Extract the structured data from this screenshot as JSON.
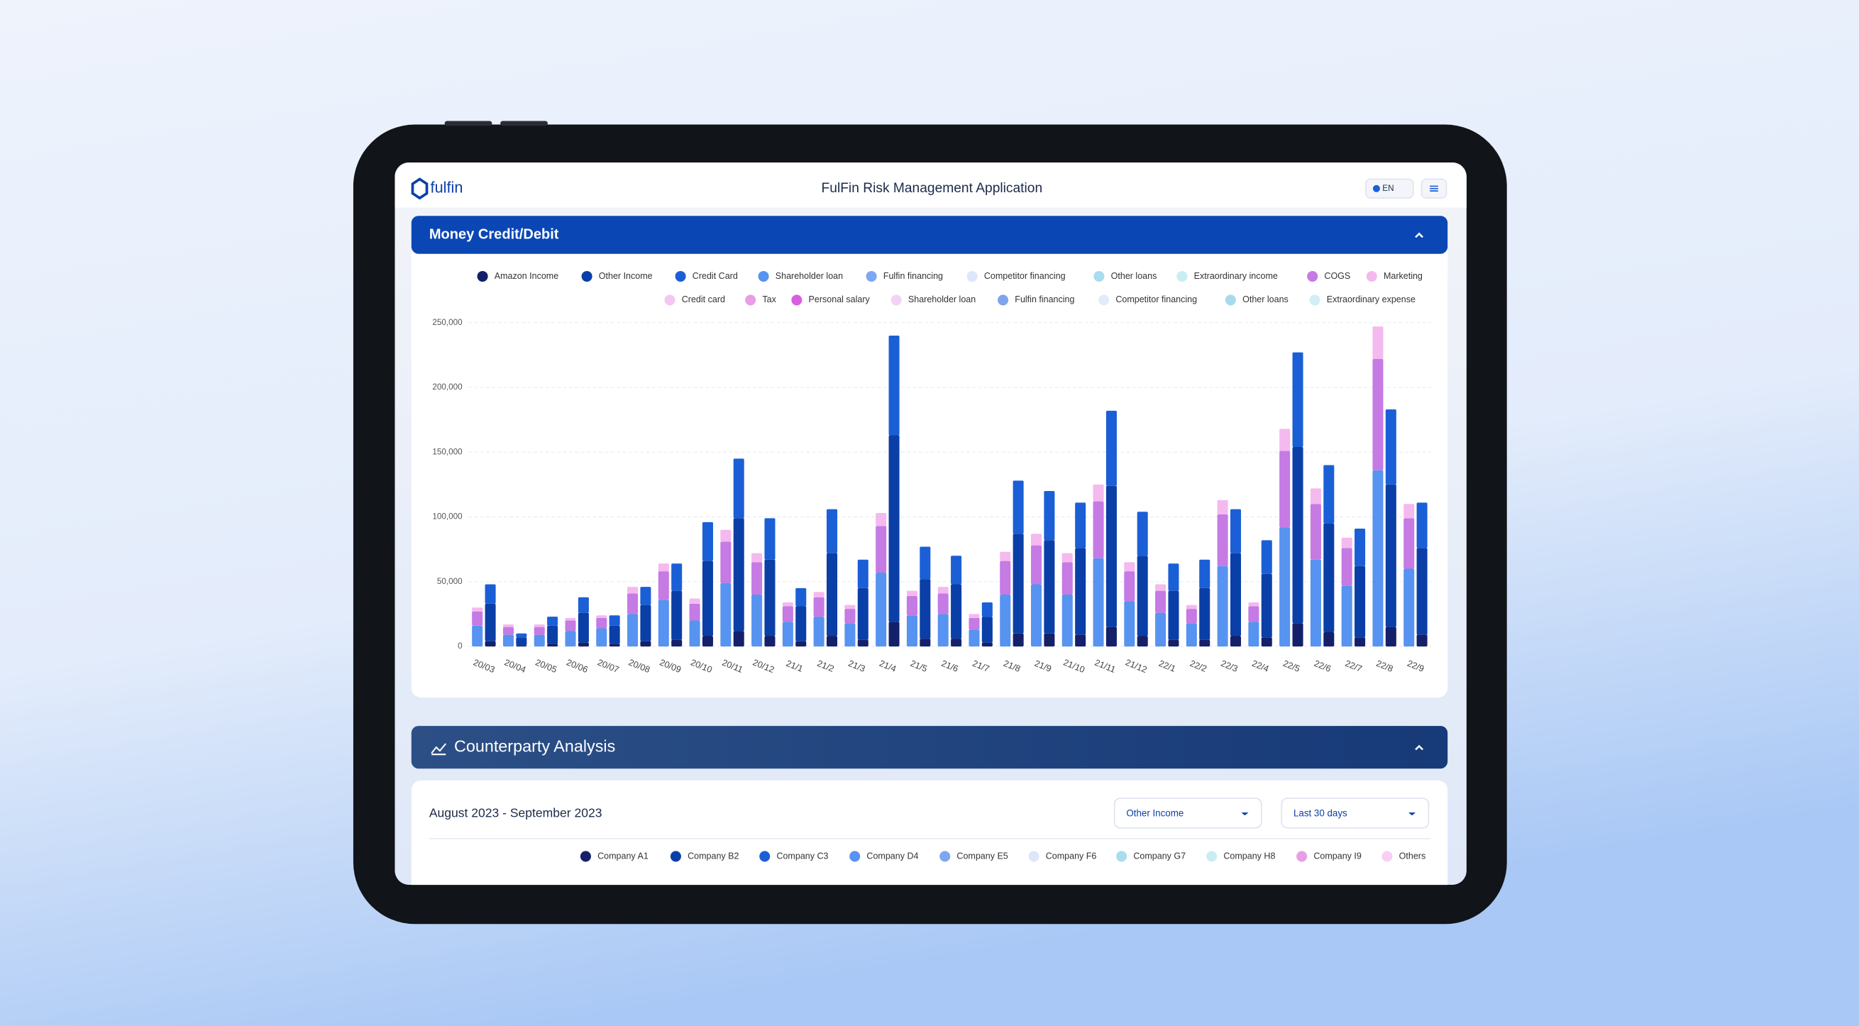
{
  "header": {
    "logo": "fulfin",
    "title": "FulFin Risk Management Application",
    "language": "EN"
  },
  "sections": [
    {
      "title": "Money Credit/Debit"
    },
    {
      "title": "Counterparty Analysis"
    }
  ],
  "chart_data": {
    "type": "bar",
    "stacked": true,
    "grid": true,
    "categories": [
      "20/03",
      "20/04",
      "20/05",
      "20/06",
      "20/07",
      "20/08",
      "20/09",
      "20/10",
      "20/11",
      "20/12",
      "21/1",
      "21/2",
      "21/3",
      "21/4",
      "21/5",
      "21/6",
      "21/7",
      "21/8",
      "21/9",
      "21/10",
      "21/11",
      "21/12",
      "22/1",
      "22/2",
      "22/3",
      "22/4",
      "22/5",
      "22/6",
      "22/7",
      "22/8",
      "22/9"
    ],
    "ylim": [
      0,
      250000
    ],
    "yticks": [
      0,
      {
        "value": 50000,
        "label": "50,000"
      },
      {
        "value": 100000,
        "label": "100,000"
      },
      {
        "value": 150000,
        "label": "150,000"
      },
      {
        "value": 200000,
        "label": "200,000"
      },
      {
        "value": 250000,
        "label": "250,000"
      }
    ],
    "series": [
      {
        "name": "Amazon Income",
        "color": "#14206a",
        "stack": "b",
        "values": [
          4000,
          1000,
          2000,
          3000,
          2000,
          4000,
          5000,
          8000,
          12000,
          8000,
          4000,
          8000,
          5000,
          19000,
          6000,
          6000,
          3000,
          10000,
          10000,
          9000,
          15000,
          8000,
          5000,
          5000,
          8000,
          7000,
          18000,
          11000,
          7000,
          15000,
          9000
        ]
      },
      {
        "name": "Other Income",
        "color": "#0b3fa8",
        "stack": "b",
        "values": [
          29000,
          6000,
          14000,
          23000,
          14000,
          28000,
          38000,
          58000,
          87000,
          59000,
          27000,
          64000,
          40000,
          144000,
          46000,
          42000,
          20000,
          77000,
          72000,
          67000,
          109000,
          62000,
          38000,
          40000,
          64000,
          49000,
          136000,
          84000,
          55000,
          110000,
          67000
        ]
      },
      {
        "name": "Credit Card",
        "color": "#1b5fd6",
        "stack": "b",
        "values": [
          15000,
          3000,
          7000,
          12000,
          8000,
          14000,
          21000,
          30000,
          46000,
          32000,
          14000,
          34000,
          22000,
          77000,
          25000,
          22000,
          11000,
          41000,
          38000,
          35000,
          58000,
          34000,
          21000,
          22000,
          34000,
          26000,
          73000,
          45000,
          29000,
          58000,
          35000
        ]
      },
      {
        "name": "Shareholder loan",
        "color": "#5793f0",
        "stack": "a",
        "values": [
          16000,
          9000,
          9000,
          12000,
          14000,
          25000,
          36000,
          20000,
          49000,
          40000,
          19000,
          23000,
          18000,
          57000,
          24000,
          25000,
          13000,
          40000,
          48000,
          40000,
          68000,
          35000,
          26000,
          18000,
          62000,
          19000,
          92000,
          67000,
          47000,
          136000,
          60000
        ]
      },
      {
        "name": "Fulfin financing",
        "color": "#7ea7f2"
      },
      {
        "name": "Competitor financing",
        "color": "#dde7fb"
      },
      {
        "name": "Other loans",
        "color": "#a8dcef"
      },
      {
        "name": "Extraordinary income",
        "color": "#c9ecf5"
      },
      {
        "name": "COGS",
        "color": "#c57ae4",
        "stack": "a",
        "values": [
          11000,
          6000,
          6000,
          8000,
          8000,
          16000,
          22000,
          13000,
          32000,
          25000,
          12000,
          15000,
          11000,
          36000,
          15000,
          16000,
          9000,
          26000,
          30000,
          25000,
          44000,
          23000,
          17000,
          11000,
          40000,
          12000,
          59000,
          43000,
          29000,
          86000,
          39000
        ]
      },
      {
        "name": "Marketing",
        "color": "#f4b9ee",
        "stack": "a",
        "values": [
          3000,
          2000,
          2000,
          2000,
          2000,
          5000,
          6000,
          4000,
          9000,
          7000,
          3000,
          4000,
          3000,
          10000,
          4000,
          5000,
          3000,
          7000,
          9000,
          7000,
          13000,
          7000,
          5000,
          3000,
          11000,
          3000,
          17000,
          12000,
          8000,
          25000,
          11000
        ]
      },
      {
        "name": "Credit card",
        "color": "#f5c7f0"
      },
      {
        "name": "Tax",
        "color": "#e79ee6"
      },
      {
        "name": "Personal salary",
        "color": "#d95fe0"
      },
      {
        "name": "Shareholder loan",
        "color": "#f3d3f4"
      },
      {
        "name": "Fulfin financing",
        "color": "#7ea4ee"
      },
      {
        "name": "Competitor financing",
        "color": "#e3ebfb"
      },
      {
        "name": "Other loans",
        "color": "#a6dbee"
      },
      {
        "name": "Extraordinary expense",
        "color": "#d2eef6"
      }
    ]
  },
  "counterparty": {
    "period": "August 2023 - September 2023",
    "filter": "Other Income",
    "range": "Last 30 days",
    "legend": [
      {
        "name": "Company A1",
        "color": "#14206a"
      },
      {
        "name": "Company B2",
        "color": "#0b3fa8"
      },
      {
        "name": "Company C3",
        "color": "#1b5fd6"
      },
      {
        "name": "Company D4",
        "color": "#5793f0"
      },
      {
        "name": "Company E5",
        "color": "#7ea7f2"
      },
      {
        "name": "Company F6",
        "color": "#dde7fb"
      },
      {
        "name": "Company G7",
        "color": "#a8dcef"
      },
      {
        "name": "Company H8",
        "color": "#c9ecf5"
      },
      {
        "name": "Company I9",
        "color": "#e79ee6"
      },
      {
        "name": "Others",
        "color": "#f7cff3"
      }
    ]
  }
}
